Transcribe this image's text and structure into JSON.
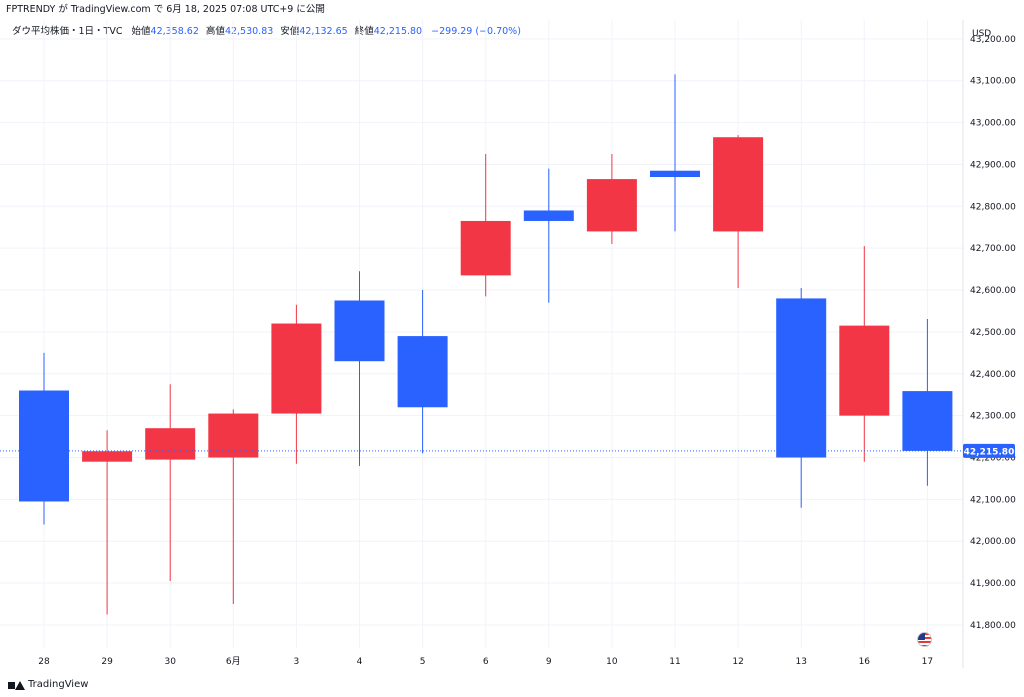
{
  "header": {
    "published_line": "FPTRENDY が TradingView.com で 6月 18, 2025 07:08 UTC+9 に公開"
  },
  "legend": {
    "symbol": "ダウ平均株価・1日・TVC",
    "open_label": "始値",
    "open_value": "42,358.62",
    "high_label": "高値",
    "high_value": "42,530.83",
    "low_label": "安値",
    "low_value": "42,132.65",
    "close_label": "終値",
    "close_value": "42,215.80",
    "change": "−299.29 (−0.70%)"
  },
  "currency": "USD",
  "last_price_label": "42,215.80",
  "footer": {
    "brand": "TradingView"
  },
  "colors": {
    "up": "#f23645",
    "down": "#2962ff",
    "grid": "#f0f3fa",
    "last_line": "#2962ff"
  },
  "icons": {
    "flag": "us-flag-icon",
    "logo": "tradingview-logo-icon"
  },
  "chart_data": {
    "type": "candlestick",
    "y_axis": {
      "min": 41745,
      "max": 43245,
      "position": "right",
      "unit": "USD",
      "ticks": [
        41800,
        41900,
        42000,
        42100,
        42200,
        42300,
        42400,
        42500,
        42600,
        42700,
        42800,
        42900,
        43000,
        43100,
        43200
      ],
      "tick_labels": [
        "41,800.00",
        "41,900.00",
        "42,000.00",
        "42,100.00",
        "42,200.00",
        "42,300.00",
        "42,400.00",
        "42,500.00",
        "42,600.00",
        "42,700.00",
        "42,800.00",
        "42,900.00",
        "43,000.00",
        "43,100.00",
        "43,200.00"
      ]
    },
    "x_labels": [
      "28",
      "29",
      "30",
      "6月",
      "3",
      "4",
      "5",
      "6",
      "9",
      "10",
      "11",
      "12",
      "13",
      "16",
      "17"
    ],
    "candles": [
      {
        "o": 42360,
        "h": 42450,
        "l": 42040,
        "c": 42095
      },
      {
        "o": 42190,
        "h": 42265,
        "l": 41825,
        "c": 42215
      },
      {
        "o": 42195,
        "h": 42375,
        "l": 41905,
        "c": 42270
      },
      {
        "o": 42200,
        "h": 42315,
        "l": 41850,
        "c": 42305
      },
      {
        "o": 42305,
        "h": 42565,
        "l": 42185,
        "c": 42520
      },
      {
        "o": 42575,
        "h": 42645,
        "l": 42180,
        "c": 42430
      },
      {
        "o": 42490,
        "h": 42600,
        "l": 42210,
        "c": 42320
      },
      {
        "o": 42635,
        "h": 42925,
        "l": 42585,
        "c": 42765
      },
      {
        "o": 42790,
        "h": 42890,
        "l": 42570,
        "c": 42765
      },
      {
        "o": 42740,
        "h": 42925,
        "l": 42710,
        "c": 42865
      },
      {
        "o": 42885,
        "h": 43115,
        "l": 42740,
        "c": 42870
      },
      {
        "o": 42740,
        "h": 42970,
        "l": 42605,
        "c": 42965
      },
      {
        "o": 42580,
        "h": 42605,
        "l": 42080,
        "c": 42200
      },
      {
        "o": 42300,
        "h": 42705,
        "l": 42190,
        "c": 42515
      },
      {
        "o": 42358.62,
        "h": 42530.83,
        "l": 42132.65,
        "c": 42215.8
      }
    ],
    "last_price": 42215.8,
    "grid": true
  }
}
